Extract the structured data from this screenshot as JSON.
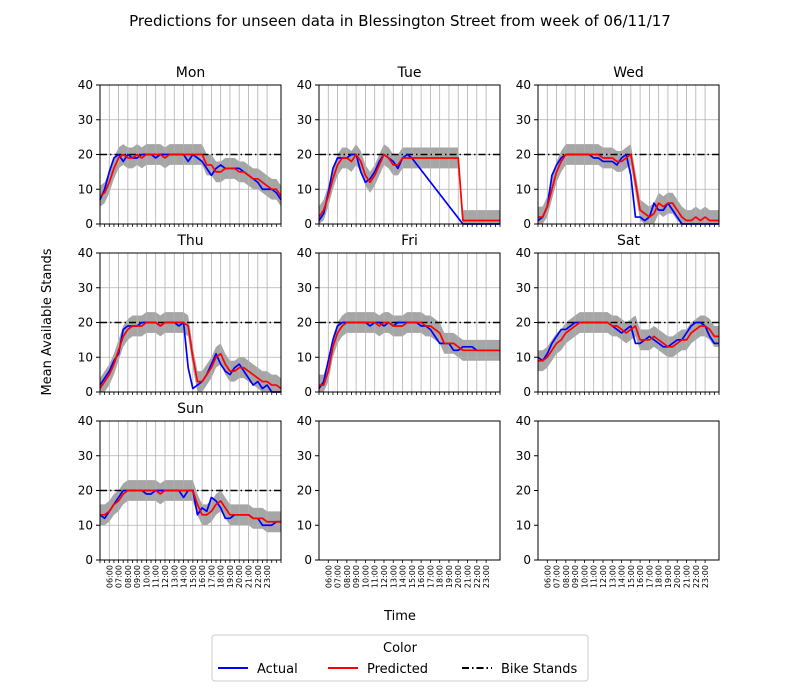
{
  "chart_data": {
    "type": "line",
    "title": "Predictions for unseen data in Blessington Street from week of 06/11/17",
    "xlabel": "Time",
    "ylabel": "Mean Available Stands",
    "ylim": [
      0,
      40
    ],
    "yticks": [
      0,
      10,
      20,
      30,
      40
    ],
    "time_labels": [
      "06:00",
      "07:00",
      "08:00",
      "09:00",
      "10:00",
      "11:00",
      "12:00",
      "13:00",
      "14:00",
      "15:00",
      "16:00",
      "17:00",
      "18:00",
      "19:00",
      "20:00",
      "21:00",
      "22:00",
      "23:00"
    ],
    "bike_stands": 20,
    "band_halfwidth": 3,
    "grid": true,
    "legend": {
      "title": "Color",
      "placement": "bottom-center",
      "entries": [
        {
          "label": "Actual",
          "color": "#0000ff",
          "style": "solid"
        },
        {
          "label": "Predicted",
          "color": "#ff0000",
          "style": "solid"
        },
        {
          "label": "Bike Stands",
          "color": "#000000",
          "style": "dashdot"
        }
      ]
    },
    "colors": {
      "actual": "#0000ff",
      "predicted": "#ff0000",
      "stands": "#000000",
      "band": "#a6a6a6",
      "grid": "#b0b0b0"
    },
    "panels": [
      {
        "day": "Mon",
        "actual": [
          7,
          10,
          15,
          19,
          20,
          18,
          20,
          19,
          19,
          20,
          20,
          20,
          19,
          20,
          20,
          20,
          20,
          20,
          20,
          18,
          20,
          19,
          18,
          16,
          14,
          16,
          17,
          16,
          16,
          16,
          16,
          15,
          14,
          13,
          12,
          10,
          10,
          10,
          9,
          7
        ],
        "predicted": [
          8,
          9,
          12,
          16,
          19,
          20,
          19,
          19,
          20,
          19,
          20,
          20,
          20,
          20,
          19,
          20,
          20,
          20,
          20,
          20,
          20,
          20,
          20,
          17,
          17,
          15,
          15,
          16,
          16,
          16,
          15,
          15,
          14,
          13,
          13,
          12,
          11,
          10,
          10,
          8
        ]
      },
      {
        "day": "Tue",
        "actual": [
          1,
          3,
          9,
          16,
          19,
          19,
          19,
          20,
          20,
          15,
          12,
          13,
          15,
          18,
          20,
          19,
          18,
          16,
          19,
          20,
          19,
          null,
          null,
          null,
          null,
          null,
          null,
          null,
          null,
          null,
          null,
          0,
          0,
          0,
          0,
          0,
          0,
          0,
          0,
          0
        ],
        "predicted": [
          2,
          4,
          8,
          13,
          17,
          19,
          19,
          18,
          20,
          18,
          14,
          12,
          14,
          17,
          20,
          19,
          17,
          17,
          19,
          19,
          19,
          19,
          19,
          19,
          19,
          19,
          19,
          19,
          19,
          19,
          19,
          1,
          1,
          1,
          1,
          1,
          1,
          1,
          1,
          1
        ]
      },
      {
        "day": "Wed",
        "actual": [
          1,
          2,
          5,
          14,
          17,
          19,
          20,
          20,
          20,
          20,
          20,
          20,
          19,
          19,
          18,
          18,
          18,
          17,
          19,
          20,
          14,
          2,
          2,
          1,
          2,
          6,
          4,
          4,
          6,
          4,
          2,
          0,
          0,
          0,
          0,
          0,
          0,
          0,
          0,
          0
        ],
        "predicted": [
          2,
          2,
          5,
          10,
          15,
          18,
          20,
          20,
          20,
          20,
          20,
          20,
          20,
          20,
          19,
          19,
          19,
          18,
          18,
          19,
          20,
          12,
          4,
          3,
          2,
          3,
          6,
          5,
          6,
          6,
          4,
          2,
          1,
          1,
          2,
          1,
          2,
          1,
          1,
          1
        ]
      },
      {
        "day": "Thu",
        "actual": [
          2,
          4,
          6,
          9,
          11,
          18,
          19,
          19,
          19,
          20,
          20,
          20,
          20,
          19,
          20,
          20,
          20,
          19,
          20,
          7,
          1,
          2,
          3,
          5,
          8,
          11,
          8,
          6,
          5,
          7,
          8,
          6,
          4,
          2,
          3,
          1,
          2,
          0,
          0,
          0
        ],
        "predicted": [
          1,
          3,
          5,
          8,
          12,
          16,
          18,
          19,
          19,
          19,
          20,
          20,
          20,
          19,
          20,
          20,
          20,
          20,
          20,
          19,
          10,
          3,
          3,
          5,
          7,
          10,
          11,
          8,
          6,
          6,
          7,
          7,
          6,
          5,
          4,
          3,
          3,
          2,
          2,
          1
        ]
      },
      {
        "day": "Fri",
        "actual": [
          1,
          3,
          9,
          15,
          19,
          20,
          20,
          20,
          20,
          20,
          20,
          19,
          20,
          20,
          19,
          20,
          19,
          20,
          20,
          20,
          20,
          20,
          19,
          19,
          18,
          16,
          14,
          14,
          14,
          12,
          12,
          13,
          13,
          13,
          12,
          12,
          12,
          12,
          12,
          12
        ],
        "predicted": [
          2,
          2,
          6,
          13,
          17,
          19,
          20,
          20,
          20,
          20,
          20,
          20,
          20,
          19,
          20,
          20,
          19,
          19,
          19,
          20,
          20,
          20,
          20,
          19,
          19,
          18,
          17,
          14,
          14,
          14,
          13,
          12,
          12,
          12,
          12,
          12,
          12,
          12,
          12,
          12
        ]
      },
      {
        "day": "Sat",
        "actual": [
          10,
          9,
          11,
          14,
          16,
          18,
          18,
          19,
          20,
          20,
          20,
          20,
          20,
          20,
          20,
          20,
          19,
          18,
          17,
          18,
          19,
          14,
          14,
          15,
          16,
          15,
          14,
          13,
          13,
          14,
          15,
          15,
          17,
          19,
          20,
          20,
          19,
          16,
          14,
          14
        ],
        "predicted": [
          9,
          9,
          10,
          12,
          14,
          15,
          17,
          18,
          19,
          20,
          20,
          20,
          20,
          20,
          20,
          20,
          19,
          19,
          18,
          17,
          18,
          19,
          15,
          15,
          15,
          16,
          15,
          14,
          13,
          13,
          14,
          15,
          15,
          17,
          18,
          19,
          19,
          18,
          16,
          16
        ]
      },
      {
        "day": "Sun",
        "actual": [
          13,
          12,
          14,
          16,
          18,
          20,
          20,
          20,
          20,
          20,
          19,
          19,
          20,
          20,
          20,
          20,
          20,
          20,
          18,
          20,
          20,
          13,
          15,
          14,
          18,
          17,
          15,
          12,
          12,
          13,
          13,
          13,
          13,
          12,
          12,
          10,
          10,
          10,
          11,
          11
        ],
        "predicted": [
          13,
          13,
          14,
          16,
          17,
          19,
          20,
          20,
          20,
          20,
          20,
          20,
          20,
          19,
          20,
          20,
          20,
          20,
          20,
          20,
          20,
          16,
          13,
          13,
          14,
          16,
          17,
          15,
          13,
          13,
          13,
          13,
          13,
          12,
          12,
          12,
          11,
          11,
          11,
          11
        ]
      }
    ],
    "empty_panels": 2
  }
}
